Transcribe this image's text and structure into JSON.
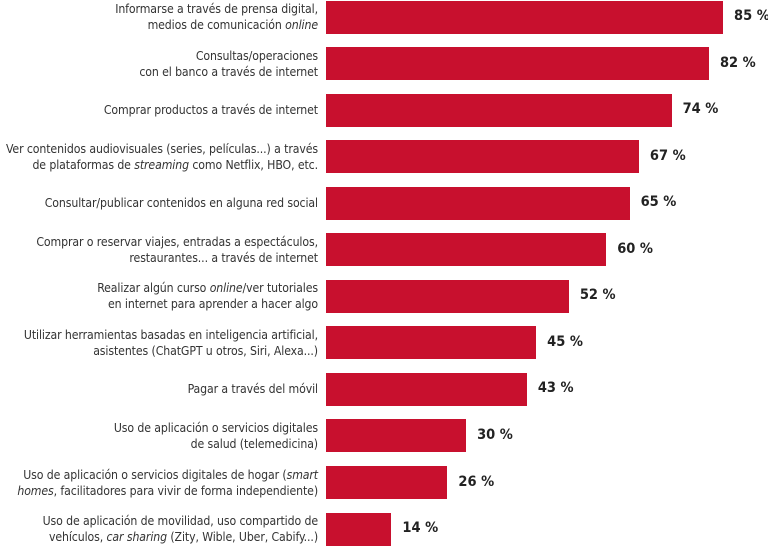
{
  "chart_data": {
    "type": "bar",
    "orientation": "horizontal",
    "bar_color": "#c8102e",
    "value_suffix": " %",
    "xlim": [
      0,
      85
    ],
    "grid": false,
    "categories": [
      [
        [
          {
            "t": "Informarse a través de prensa digital,"
          }
        ],
        [
          {
            "t": "medios de comunicación "
          },
          {
            "t": "online",
            "i": true
          }
        ]
      ],
      [
        [
          {
            "t": "Consultas/operaciones"
          }
        ],
        [
          {
            "t": "con el banco a través de internet"
          }
        ]
      ],
      [
        [
          {
            "t": "Comprar productos a través de internet"
          }
        ]
      ],
      [
        [
          {
            "t": "Ver contenidos audiovisuales (series, películas...) a través"
          }
        ],
        [
          {
            "t": "de plataformas de "
          },
          {
            "t": "streaming",
            "i": true
          },
          {
            "t": " como Netflix, HBO, etc."
          }
        ]
      ],
      [
        [
          {
            "t": "Consultar/publicar contenidos en alguna red social"
          }
        ]
      ],
      [
        [
          {
            "t": "Comprar o reservar viajes, entradas a espectáculos,"
          }
        ],
        [
          {
            "t": "restaurantes... a través de internet"
          }
        ]
      ],
      [
        [
          {
            "t": "Realizar algún curso "
          },
          {
            "t": "online",
            "i": true
          },
          {
            "t": "/ver tutoriales"
          }
        ],
        [
          {
            "t": "en internet para aprender a hacer algo"
          }
        ]
      ],
      [
        [
          {
            "t": "Utilizar herramientas basadas en inteligencia artificial,"
          }
        ],
        [
          {
            "t": "asistentes (ChatGPT u otros, Siri, Alexa...)"
          }
        ]
      ],
      [
        [
          {
            "t": "Pagar a través del móvil"
          }
        ]
      ],
      [
        [
          {
            "t": "Uso de aplicación o servicios digitales"
          }
        ],
        [
          {
            "t": "de salud (telemedicina)"
          }
        ]
      ],
      [
        [
          {
            "t": "Uso de aplicación o servicios digitales de hogar ("
          },
          {
            "t": "smart",
            "i": true
          }
        ],
        [
          {
            "t": "homes",
            "i": true
          },
          {
            "t": ", facilitadores para vivir de forma independiente)"
          }
        ]
      ],
      [
        [
          {
            "t": "Uso de aplicación de movilidad, uso compartido de"
          }
        ],
        [
          {
            "t": "vehículos, "
          },
          {
            "t": "car sharing",
            "i": true
          },
          {
            "t": " (Zity, Wible, Uber, Cabify...)"
          }
        ]
      ]
    ],
    "values": [
      85,
      82,
      74,
      67,
      65,
      60,
      52,
      45,
      43,
      30,
      26,
      14
    ]
  }
}
